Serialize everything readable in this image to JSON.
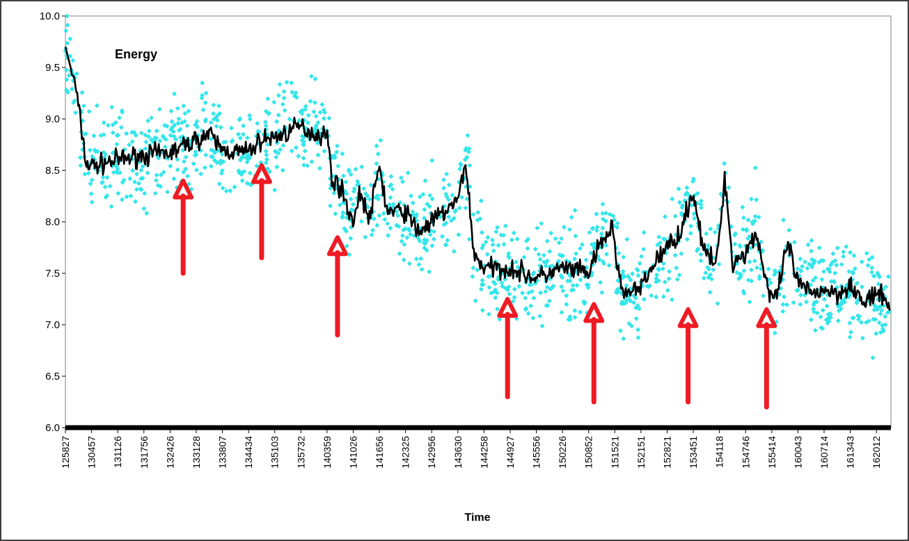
{
  "chart_data": {
    "type": "scatter",
    "title": "",
    "series_label": "Energy",
    "xlabel": "Time",
    "ylabel": "",
    "ylim": [
      6.0,
      10.0
    ],
    "yticks": [
      "10.0",
      "9.5",
      "9.0",
      "8.5",
      "8.0",
      "7.5",
      "7.0",
      "6.5",
      "6.0"
    ],
    "x_tick_labels": [
      "125827",
      "130457",
      "131126",
      "131756",
      "132426",
      "133128",
      "133807",
      "134434",
      "135103",
      "135732",
      "140359",
      "141026",
      "141656",
      "142325",
      "142956",
      "143630",
      "144258",
      "144927",
      "145556",
      "150226",
      "150852",
      "151521",
      "152151",
      "152821",
      "153451",
      "154118",
      "154746",
      "155414",
      "160043",
      "160714",
      "161343",
      "162012"
    ],
    "grid": false,
    "colors": {
      "scatter": "#33e6ea",
      "line": "#000000",
      "arrows": "#ee1b24"
    },
    "series": [
      {
        "kind": "smoothed-line",
        "values": [
          [
            0.0,
            9.7
          ],
          [
            0.4,
            9.3
          ],
          [
            0.8,
            8.55
          ],
          [
            1.2,
            8.55
          ],
          [
            1.6,
            8.58
          ],
          [
            2.0,
            8.6
          ],
          [
            3.0,
            8.65
          ],
          [
            4.0,
            8.67
          ],
          [
            5.0,
            8.8
          ],
          [
            5.5,
            8.85
          ],
          [
            6.0,
            8.7
          ],
          [
            6.5,
            8.68
          ],
          [
            7.0,
            8.68
          ],
          [
            7.5,
            8.8
          ],
          [
            8.0,
            8.82
          ],
          [
            9.0,
            8.93
          ],
          [
            9.5,
            8.85
          ],
          [
            10.0,
            8.85
          ],
          [
            10.2,
            8.4
          ],
          [
            10.5,
            8.35
          ],
          [
            10.7,
            8.2
          ],
          [
            11.0,
            8.0
          ],
          [
            11.3,
            8.3
          ],
          [
            11.6,
            8.0
          ],
          [
            12.0,
            8.55
          ],
          [
            12.3,
            8.1
          ],
          [
            13.0,
            8.1
          ],
          [
            13.5,
            7.9
          ],
          [
            14.0,
            8.0
          ],
          [
            14.5,
            8.1
          ],
          [
            15.0,
            8.2
          ],
          [
            15.3,
            8.6
          ],
          [
            15.6,
            7.7
          ],
          [
            16.0,
            7.55
          ],
          [
            17.0,
            7.55
          ],
          [
            18.0,
            7.45
          ],
          [
            19.0,
            7.55
          ],
          [
            20.0,
            7.5
          ],
          [
            20.4,
            7.75
          ],
          [
            20.9,
            7.95
          ],
          [
            21.2,
            7.4
          ],
          [
            21.5,
            7.3
          ],
          [
            22.0,
            7.35
          ],
          [
            22.5,
            7.6
          ],
          [
            23.0,
            7.75
          ],
          [
            23.5,
            7.9
          ],
          [
            24.0,
            8.3
          ],
          [
            24.4,
            7.7
          ],
          [
            24.9,
            7.6
          ],
          [
            25.2,
            8.45
          ],
          [
            25.5,
            7.6
          ],
          [
            26.0,
            7.7
          ],
          [
            26.4,
            7.9
          ],
          [
            26.9,
            7.3
          ],
          [
            27.2,
            7.25
          ],
          [
            27.6,
            7.8
          ],
          [
            28.0,
            7.4
          ],
          [
            28.5,
            7.3
          ],
          [
            29.0,
            7.35
          ],
          [
            29.5,
            7.3
          ],
          [
            30.0,
            7.4
          ],
          [
            30.5,
            7.2
          ],
          [
            31.0,
            7.3
          ],
          [
            31.5,
            7.2
          ]
        ]
      }
    ],
    "annotations": {
      "arrows": [
        {
          "x": 4.5,
          "tip_y": 8.4,
          "tail_y": 7.5
        },
        {
          "x": 7.5,
          "tip_y": 8.55,
          "tail_y": 7.65
        },
        {
          "x": 10.4,
          "tip_y": 7.85,
          "tail_y": 6.9
        },
        {
          "x": 16.9,
          "tip_y": 7.25,
          "tail_y": 6.3
        },
        {
          "x": 20.2,
          "tip_y": 7.2,
          "tail_y": 6.25
        },
        {
          "x": 23.8,
          "tip_y": 7.15,
          "tail_y": 6.25
        },
        {
          "x": 26.8,
          "tip_y": 7.15,
          "tail_y": 6.2
        }
      ]
    }
  }
}
